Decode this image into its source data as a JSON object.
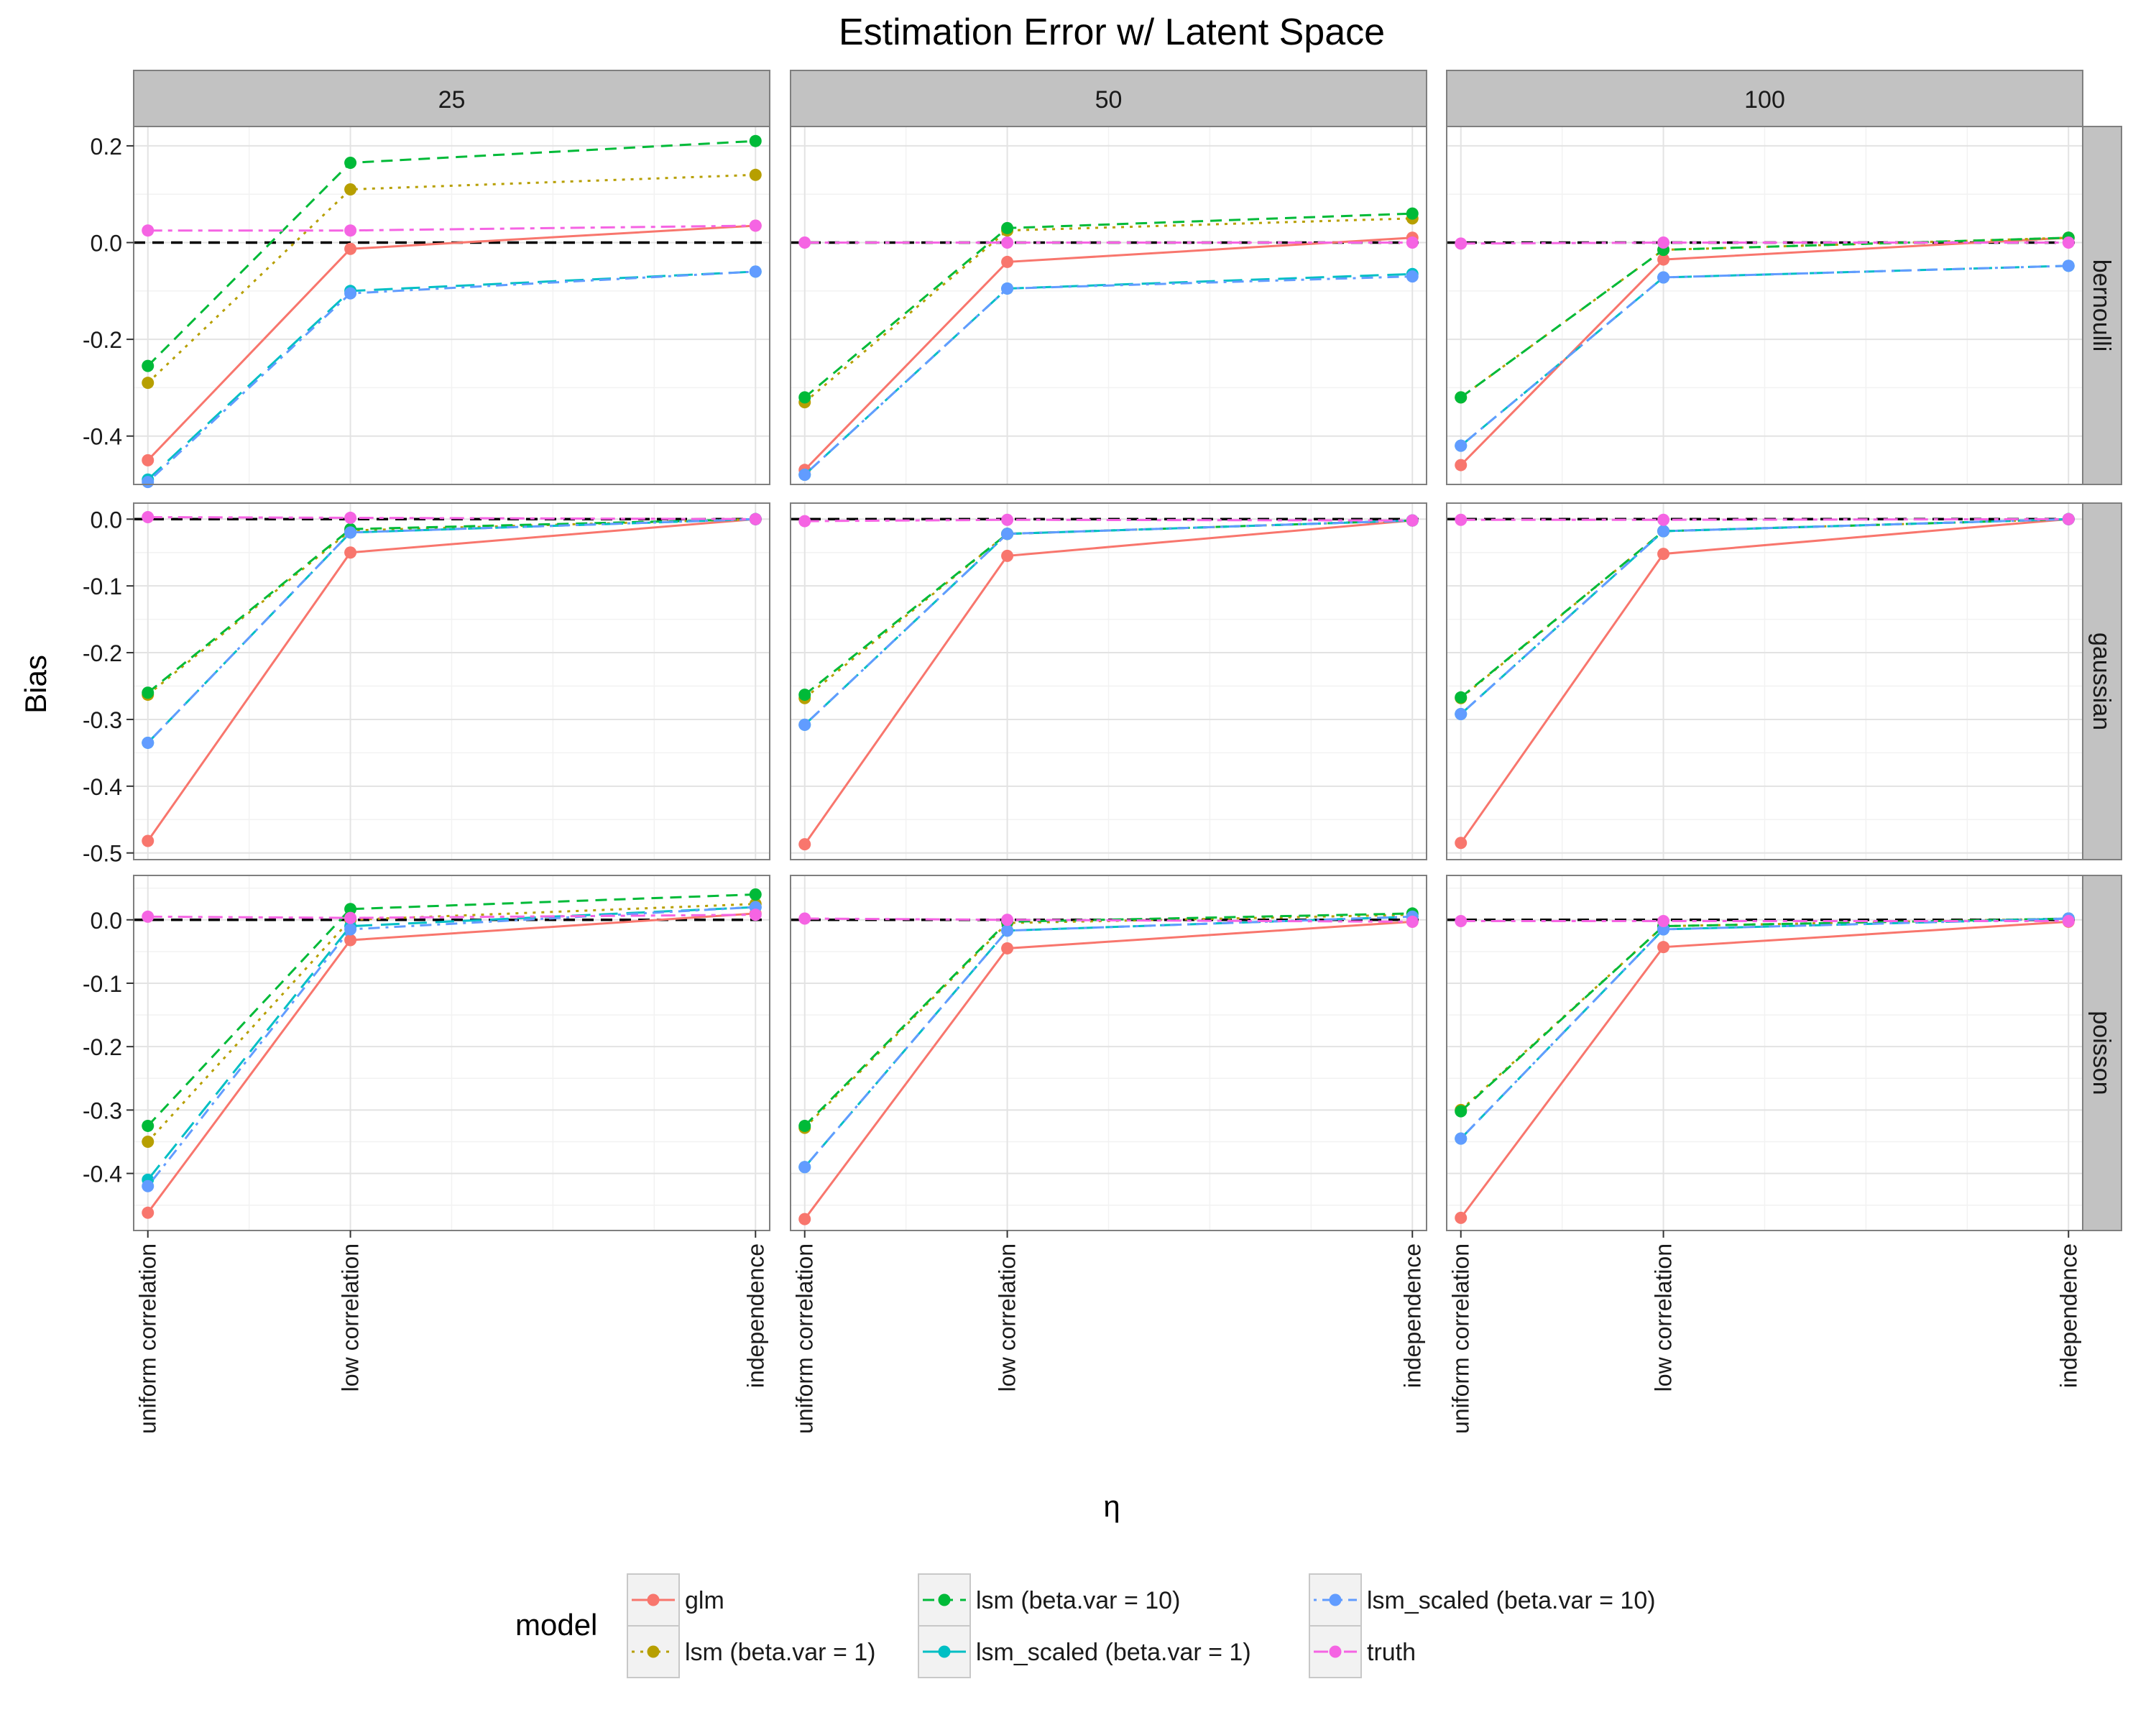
{
  "chart_data": {
    "type": "line",
    "title": "Estimation Error w/ Latent Space",
    "xlabel": "η",
    "ylabel": "Bias",
    "categories": [
      "uniform correlation",
      "low correlation",
      "independence"
    ],
    "x_positions": [
      0,
      1,
      3
    ],
    "grid": true,
    "legend": {
      "title": "model",
      "placement": "bottom"
    },
    "columns": [
      "25",
      "50",
      "100"
    ],
    "rows": [
      "bernoulli",
      "gaussian",
      "poisson"
    ],
    "reference_line": 0,
    "row_ylim": {
      "bernoulli": [
        -0.5,
        0.24
      ],
      "gaussian": [
        -0.51,
        0.024
      ],
      "poisson": [
        -0.49,
        0.07
      ]
    },
    "row_ticks": {
      "bernoulli": [
        0.2,
        0.0,
        -0.2,
        -0.4
      ],
      "gaussian": [
        0.0,
        -0.1,
        -0.2,
        -0.3,
        -0.4,
        -0.5
      ],
      "poisson": [
        0.0,
        -0.1,
        -0.2,
        -0.3,
        -0.4
      ]
    },
    "series": [
      {
        "name": "glm",
        "color": "#F8766D",
        "dash": "solid"
      },
      {
        "name": "lsm (beta.var = 1)",
        "color": "#B79F00",
        "dash": "dotted"
      },
      {
        "name": "lsm (beta.var = 10)",
        "color": "#00BA38",
        "dash": "dashed"
      },
      {
        "name": "lsm_scaled (beta.var = 1)",
        "color": "#00BFC4",
        "dash": "longdash"
      },
      {
        "name": "lsm_scaled (beta.var = 10)",
        "color": "#619CFF",
        "dash": "dotdash"
      },
      {
        "name": "truth",
        "color": "#F564E3",
        "dash": "twodash"
      }
    ],
    "panels": [
      {
        "row": "bernoulli",
        "col": "25",
        "values": [
          [
            -0.45,
            -0.013,
            0.035
          ],
          [
            -0.29,
            0.11,
            0.14
          ],
          [
            -0.255,
            0.165,
            0.21
          ],
          [
            -0.49,
            -0.1,
            -0.06
          ],
          [
            -0.495,
            -0.105,
            -0.06
          ],
          [
            0.025,
            0.025,
            0.035
          ]
        ]
      },
      {
        "row": "bernoulli",
        "col": "50",
        "values": [
          [
            -0.47,
            -0.04,
            0.01
          ],
          [
            -0.33,
            0.025,
            0.05
          ],
          [
            -0.32,
            0.03,
            0.06
          ],
          [
            -0.48,
            -0.095,
            -0.065
          ],
          [
            -0.48,
            -0.095,
            -0.07
          ],
          [
            0.0,
            0.0,
            0.0
          ]
        ]
      },
      {
        "row": "bernoulli",
        "col": "100",
        "values": [
          [
            -0.46,
            -0.035,
            0.01
          ],
          [
            -0.32,
            -0.015,
            0.01
          ],
          [
            -0.32,
            -0.015,
            0.01
          ],
          [
            -0.42,
            -0.072,
            -0.048
          ],
          [
            -0.42,
            -0.072,
            -0.048
          ],
          [
            -0.002,
            0.0,
            0.0
          ]
        ]
      },
      {
        "row": "gaussian",
        "col": "25",
        "values": [
          [
            -0.482,
            -0.05,
            0.0
          ],
          [
            -0.263,
            -0.017,
            0.0
          ],
          [
            -0.26,
            -0.015,
            0.0
          ],
          [
            -0.335,
            -0.02,
            0.0
          ],
          [
            -0.335,
            -0.02,
            0.0
          ],
          [
            0.003,
            0.002,
            0.0
          ]
        ]
      },
      {
        "row": "gaussian",
        "col": "50",
        "values": [
          [
            -0.487,
            -0.055,
            -0.002
          ],
          [
            -0.268,
            -0.022,
            -0.002
          ],
          [
            -0.263,
            -0.022,
            -0.002
          ],
          [
            -0.308,
            -0.022,
            -0.002
          ],
          [
            -0.308,
            -0.022,
            -0.002
          ],
          [
            -0.003,
            -0.001,
            -0.002
          ]
        ]
      },
      {
        "row": "gaussian",
        "col": "100",
        "values": [
          [
            -0.485,
            -0.052,
            0.0
          ],
          [
            -0.268,
            -0.018,
            0.0
          ],
          [
            -0.267,
            -0.018,
            0.0
          ],
          [
            -0.292,
            -0.018,
            0.0
          ],
          [
            -0.292,
            -0.018,
            0.0
          ],
          [
            -0.001,
            -0.001,
            0.0
          ]
        ]
      },
      {
        "row": "poisson",
        "col": "25",
        "values": [
          [
            -0.462,
            -0.032,
            0.01
          ],
          [
            -0.35,
            0.0,
            0.025
          ],
          [
            -0.325,
            0.017,
            0.04
          ],
          [
            -0.41,
            -0.01,
            0.02
          ],
          [
            -0.42,
            -0.015,
            0.02
          ],
          [
            0.005,
            0.003,
            0.008
          ]
        ]
      },
      {
        "row": "poisson",
        "col": "50",
        "values": [
          [
            -0.472,
            -0.045,
            -0.003
          ],
          [
            -0.328,
            -0.005,
            0.008
          ],
          [
            -0.325,
            -0.003,
            0.01
          ],
          [
            -0.39,
            -0.017,
            0.005
          ],
          [
            -0.39,
            -0.017,
            0.005
          ],
          [
            0.002,
            0.0,
            -0.003
          ]
        ]
      },
      {
        "row": "poisson",
        "col": "100",
        "values": [
          [
            -0.47,
            -0.043,
            -0.003
          ],
          [
            -0.3,
            -0.01,
            0.002
          ],
          [
            -0.302,
            -0.01,
            0.002
          ],
          [
            -0.345,
            -0.015,
            0.002
          ],
          [
            -0.345,
            -0.015,
            0.002
          ],
          [
            -0.002,
            -0.002,
            -0.002
          ]
        ]
      }
    ]
  }
}
